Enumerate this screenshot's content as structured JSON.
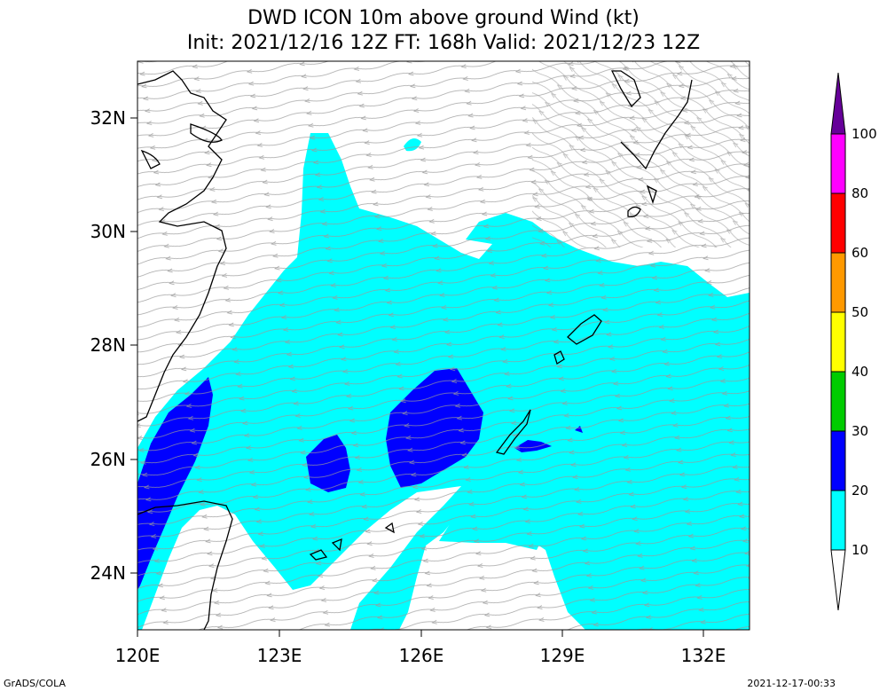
{
  "title": {
    "line1": "DWD ICON 10m above ground Wind (kt)",
    "line2": "Init: 2021/12/16 12Z  FT: 168h  Valid: 2021/12/23 12Z"
  },
  "footer": {
    "left": "GrADS/COLA",
    "right": "2021-12-17-00:33"
  },
  "axes": {
    "x_ticks": [
      "120E",
      "123E",
      "126E",
      "129E",
      "132E"
    ],
    "y_ticks": [
      "32N",
      "30N",
      "28N",
      "26N",
      "24N"
    ]
  },
  "colorbar": {
    "levels": [
      "10",
      "20",
      "30",
      "40",
      "50",
      "60",
      "80",
      "100"
    ],
    "colors": [
      "#00ffff",
      "#0000ff",
      "#00cc00",
      "#ffff00",
      "#ff9900",
      "#ff0000",
      "#ff00ff",
      "#660099"
    ]
  },
  "map": {
    "lon_range": [
      120,
      133
    ],
    "lat_range": [
      23,
      33
    ],
    "calm_color": "#ffffff",
    "streamline_color": "#999999",
    "coast_color": "#000000"
  }
}
